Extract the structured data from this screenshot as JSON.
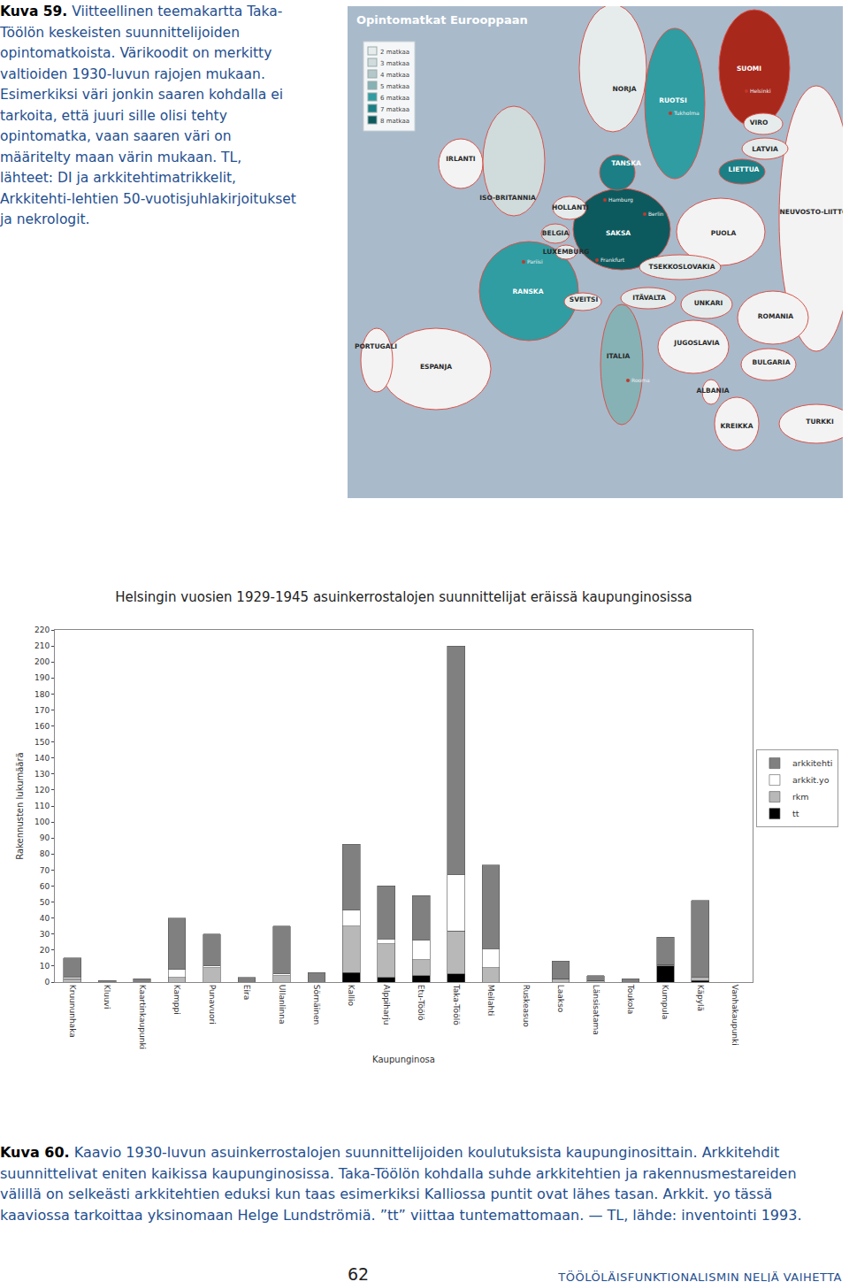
{
  "captions": {
    "kuva59": {
      "label": "Kuva 59.",
      "text": "Viitteellinen teemakartta Taka-Töölön keskeisten suunnittelijoiden opintomatkoista. Värikoodit on merkitty valtioiden 1930-luvun rajojen mukaan. Esimerkiksi väri jonkin saaren kohdalla ei tarkoita, että juuri sille olisi tehty opintomatka, vaan saaren väri on määritelty maan värin mukaan. TL, lähteet: DI ja arkkitehtimatrikkelit, Arkkitehti-lehtien 50-vuotisjuhlakirjoitukset ja nekrologit."
    },
    "kuva60": {
      "label": "Kuva 60.",
      "text": "Kaavio 1930-luvun asuinkerrostalojen suunnittelijoiden koulutuksista kaupunginosittain. Arkkitehdit suunnittelivat eniten kaikissa kaupunginosissa. Taka-Töölön kohdalla suhde arkkitehtien ja rakennusmestareiden välillä on selkeästi arkkitehtien eduksi kun taas esimerkiksi Kalliossa puntit ovat lähes tasan. Arkkit. yo tässä kaaviossa tarkoittaa yksinomaan Helge Lundströmiä. ”tt” viittaa tuntemattomaan. — TL, lähde: inventointi 1993."
    }
  },
  "map": {
    "title": "Opintomatkat Eurooppaan",
    "legend": [
      {
        "label": "2 matkaa",
        "trips": 2,
        "color": "#e6ecec"
      },
      {
        "label": "3 matkaa",
        "trips": 3,
        "color": "#d0dbdc"
      },
      {
        "label": "4 matkaa",
        "trips": 4,
        "color": "#b4c7c9"
      },
      {
        "label": "5 matkaa",
        "trips": 5,
        "color": "#86b2b5"
      },
      {
        "label": "6 matkaa",
        "trips": 6,
        "color": "#2f9da2"
      },
      {
        "label": "7 matkaa",
        "trips": 7,
        "color": "#1b7f85"
      },
      {
        "label": "8 matkaa",
        "trips": 8,
        "color": "#0d5a5e"
      }
    ],
    "home_color": "#a8281c",
    "countries": [
      {
        "name": "NEUVOSTO-LIITTO",
        "trips": null
      },
      {
        "name": "NORJA",
        "trips": 2
      },
      {
        "name": "RUOTSI",
        "trips": 6
      },
      {
        "name": "SUOMI",
        "trips": null,
        "home": true
      },
      {
        "name": "VIRO",
        "trips": 2
      },
      {
        "name": "LATVIA",
        "trips": 2
      },
      {
        "name": "LIETTUA",
        "trips": 7
      },
      {
        "name": "IRLANTI",
        "trips": null
      },
      {
        "name": "ISO-BRITANNIA",
        "trips": 3
      },
      {
        "name": "ESPANJA",
        "trips": null
      },
      {
        "name": "PORTUGALI",
        "trips": null
      },
      {
        "name": "RANSKA",
        "trips": 6
      },
      {
        "name": "PUOLA",
        "trips": null
      },
      {
        "name": "SAKSA",
        "trips": 8
      },
      {
        "name": "TANSKA",
        "trips": 7
      },
      {
        "name": "HOLLANTI",
        "trips": 2
      },
      {
        "name": "BELGIA",
        "trips": 3
      },
      {
        "name": "LUXEMBURG",
        "trips": 2
      },
      {
        "name": "TSEKKOSLOVAKIA",
        "trips": 2
      },
      {
        "name": "SVEITSI",
        "trips": 2
      },
      {
        "name": "ITÄVALTA",
        "trips": 2
      },
      {
        "name": "UNKARI",
        "trips": 2
      },
      {
        "name": "ROMANIA",
        "trips": null
      },
      {
        "name": "JUGOSLAVIA",
        "trips": null
      },
      {
        "name": "BULGARIA",
        "trips": null
      },
      {
        "name": "TURKKI",
        "trips": null
      },
      {
        "name": "KREIKKA",
        "trips": null
      },
      {
        "name": "ALBANIA",
        "trips": null
      },
      {
        "name": "ITALIA",
        "trips": 5
      }
    ],
    "cities": [
      "Helsinki",
      "Tukholma",
      "Hamburg",
      "Berlin",
      "Frankfurt",
      "Pariisi",
      "Rooma"
    ]
  },
  "chart_data": {
    "type": "bar",
    "title": "Helsingin vuosien 1929-1945 asuinkerrostalojen suunnittelijat eräissä kaupunginosissa",
    "x_label": "Kaupunginosa",
    "y_label": "Rakennusten lukumäärä",
    "categories": [
      "Kruununhaka",
      "Kluuvi",
      "Kaartinkaupunki",
      "Kamppi",
      "Punavuori",
      "Eira",
      "Ullanlinna",
      "Sörnäinen",
      "Kallio",
      "Alppiharju",
      "Etu-Töölö",
      "Taka-Töölö",
      "Meilahti",
      "Ruskeasuo",
      "Laakso",
      "Länsisatama",
      "Toukola",
      "Kumpula",
      "Käpylä",
      "Vanhakaupunki"
    ],
    "series": [
      {
        "name": "tt",
        "color": "#000000",
        "values": [
          0,
          0,
          0,
          0,
          0,
          0,
          0,
          0,
          6,
          3,
          4,
          5,
          0,
          0,
          0,
          0,
          0,
          10,
          1,
          0
        ]
      },
      {
        "name": "rkm",
        "color": "#b8b8b8",
        "values": [
          2,
          0,
          0,
          3,
          9,
          0,
          4,
          0,
          29,
          21,
          10,
          27,
          9,
          0,
          2,
          1,
          0,
          1,
          2,
          0
        ]
      },
      {
        "name": "arkkit.yo",
        "color": "#ffffff",
        "values": [
          1,
          0,
          0,
          5,
          1,
          0,
          1,
          0,
          10,
          3,
          12,
          35,
          12,
          0,
          0,
          0,
          0,
          0,
          0,
          0
        ]
      },
      {
        "name": "arkkitehti",
        "color": "#808080",
        "values": [
          12,
          1,
          2,
          32,
          20,
          3,
          30,
          6,
          41,
          33,
          28,
          143,
          52,
          0,
          11,
          3,
          2,
          17,
          48,
          0
        ]
      }
    ],
    "stacked": true,
    "ylim": [
      0,
      220
    ],
    "yticks": [
      0,
      10,
      20,
      30,
      40,
      50,
      60,
      70,
      80,
      90,
      100,
      110,
      120,
      130,
      140,
      150,
      160,
      170,
      180,
      190,
      200,
      210,
      220
    ],
    "grid": false,
    "legend": "right"
  },
  "footer": {
    "page": 62,
    "title": "TÖÖLÖLÄISFUNKTIONALISMIN NELJÄ VAIHETTA"
  }
}
